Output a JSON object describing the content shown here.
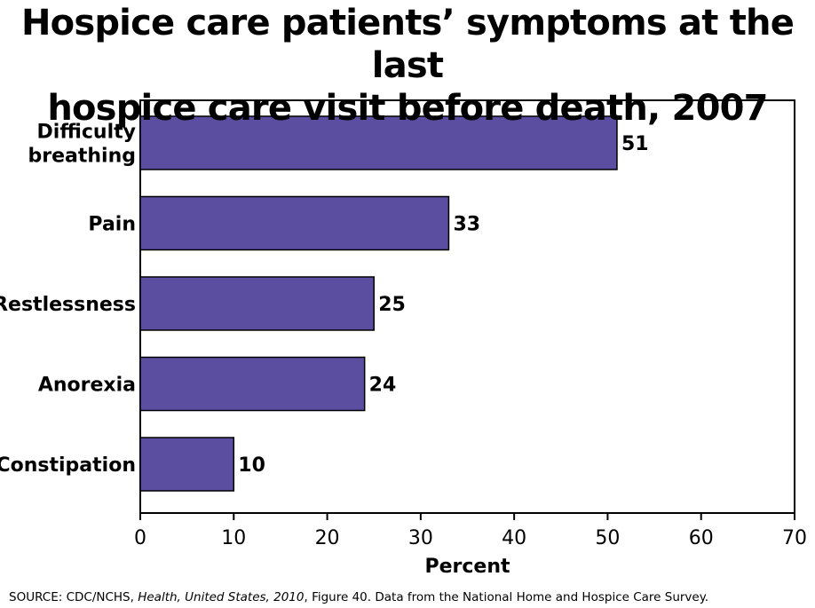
{
  "chart_data": {
    "type": "bar",
    "orientation": "horizontal",
    "title_lines": [
      "Hospice care patients’ symptoms at the last",
      "hospice care visit before death, 2007"
    ],
    "categories": [
      [
        "Difficulty",
        "breathing"
      ],
      [
        "Pain"
      ],
      [
        "Restlessness"
      ],
      [
        "Anorexia"
      ],
      [
        "Constipation"
      ]
    ],
    "values": [
      51,
      33,
      25,
      24,
      10
    ],
    "data_labels": [
      "51",
      "33",
      "25",
      "24",
      "10"
    ],
    "xlabel": "Percent",
    "xlim": [
      0,
      70
    ],
    "xticks": [
      0,
      10,
      20,
      30,
      40,
      50,
      60,
      70
    ],
    "grid": false,
    "colors": {
      "bar_fill": "#5b4ea1",
      "bar_stroke": "#000000",
      "frame": "#000000"
    }
  },
  "source": {
    "prefix": "SOURCE: CDC/NCHS, ",
    "publication": "Health, United States, 2010",
    "suffix": ", Figure 40. Data from the National Home and Hospice Care Survey."
  }
}
